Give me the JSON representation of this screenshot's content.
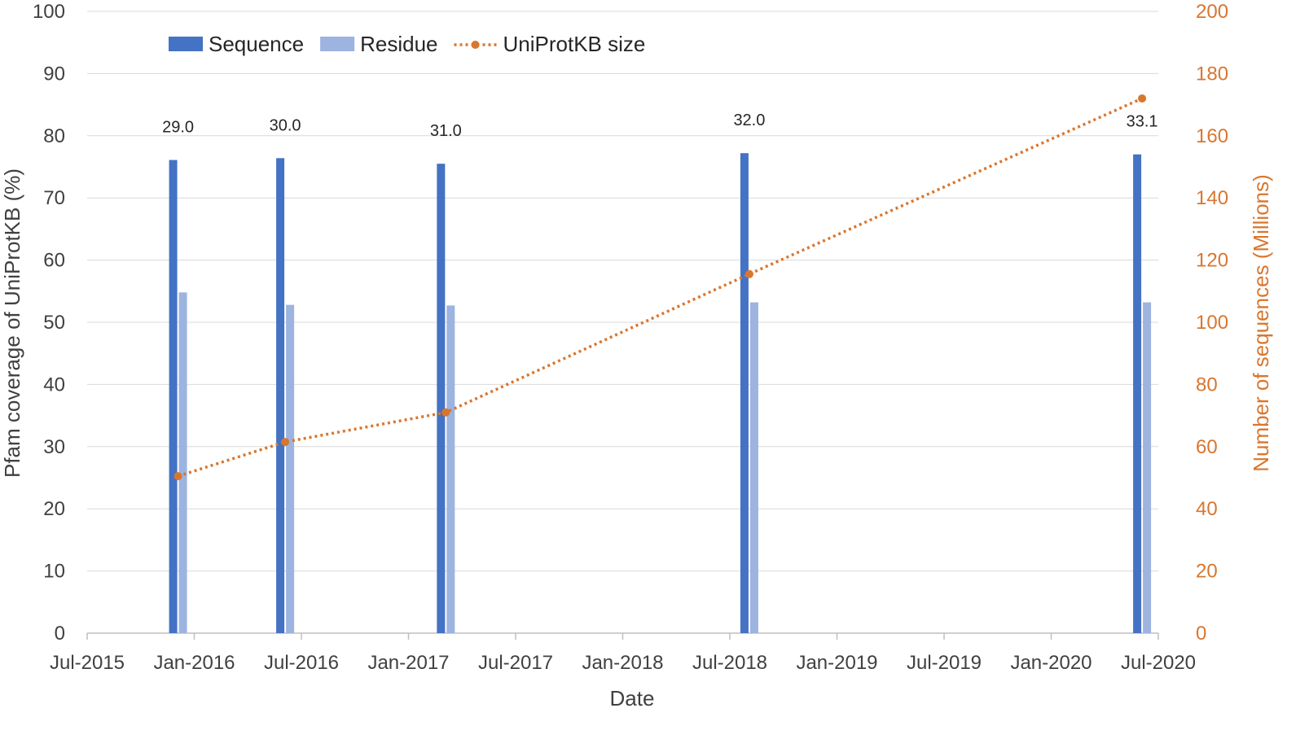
{
  "chart_data": {
    "type": "bar",
    "xlabel": "Date",
    "ylabel": "Pfam coverage of UniProtKB (%)",
    "y2label": "Number of sequences (Millions)",
    "ylim": [
      0,
      100
    ],
    "y2lim": [
      0,
      200
    ],
    "yticks": [
      "0",
      "10",
      "20",
      "30",
      "40",
      "50",
      "60",
      "70",
      "80",
      "90",
      "100"
    ],
    "y2ticks": [
      "0",
      "20",
      "40",
      "60",
      "80",
      "100",
      "120",
      "140",
      "160",
      "180",
      "200"
    ],
    "xticks": [
      "Jul-2015",
      "Jan-2016",
      "Jul-2016",
      "Jan-2017",
      "Jul-2017",
      "Jan-2018",
      "Jul-2018",
      "Jan-2019",
      "Jul-2019",
      "Jan-2020",
      "Jul-2020"
    ],
    "grid": "horizontal",
    "legend_position": "top-left",
    "releases": [
      {
        "date": "Dec-2015",
        "label": "29.0"
      },
      {
        "date": "Jun-2016",
        "label": "30.0"
      },
      {
        "date": "Mar-2017",
        "label": "31.0"
      },
      {
        "date": "Aug-2018",
        "label": "32.0"
      },
      {
        "date": "Jun-2020",
        "label": "33.1"
      }
    ],
    "series": [
      {
        "name": "Sequence",
        "type": "bar",
        "axis": "left",
        "color": "#4472C4",
        "values": [
          76.1,
          76.4,
          75.5,
          77.2,
          77.0
        ]
      },
      {
        "name": "Residue",
        "type": "bar",
        "axis": "left",
        "color": "#9DB3E0",
        "values": [
          54.8,
          52.8,
          52.7,
          53.2,
          53.2
        ]
      },
      {
        "name": "UniProtKB size",
        "type": "line",
        "style": "dotted",
        "axis": "right",
        "color": "#D9762E",
        "values": [
          50.5,
          61.5,
          71.0,
          115.5,
          172.0
        ]
      }
    ]
  }
}
